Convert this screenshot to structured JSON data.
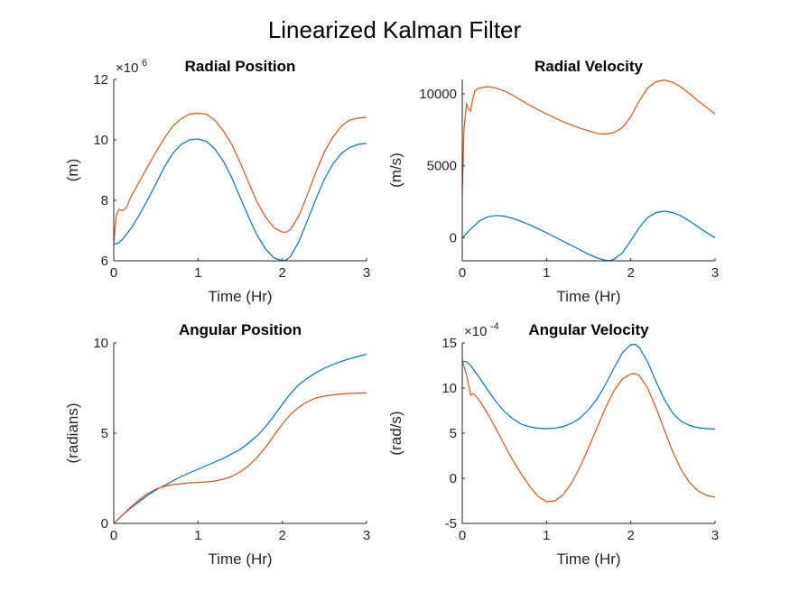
{
  "figure_title": "Linearized Kalman Filter",
  "colors": {
    "series1": "#0072BD",
    "series2": "#D95319",
    "axis": "#262626"
  },
  "chart_data": [
    {
      "type": "line",
      "title": "Radial Position",
      "xlabel": "Time (Hr)",
      "ylabel": "(m)",
      "exponent_label": "×10",
      "exponent_power": "6",
      "xlim": [
        0,
        3
      ],
      "ylim": [
        6,
        12
      ],
      "xticks": [
        "0",
        "1",
        "2",
        "3"
      ],
      "yticks": [
        "6",
        "8",
        "10",
        "12"
      ],
      "xtick_values": [
        0,
        1,
        2,
        3
      ],
      "ytick_values": [
        6,
        8,
        10,
        12
      ],
      "series": [
        {
          "color": "#0072BD",
          "x": [
            0,
            0.05,
            0.1,
            0.2,
            0.3,
            0.4,
            0.5,
            0.6,
            0.7,
            0.8,
            0.9,
            1.0,
            1.1,
            1.2,
            1.3,
            1.4,
            1.5,
            1.6,
            1.7,
            1.8,
            1.9,
            2.0,
            2.05,
            2.1,
            2.2,
            2.3,
            2.4,
            2.5,
            2.6,
            2.7,
            2.8,
            2.9,
            3.0
          ],
          "y": [
            6.55,
            6.58,
            6.7,
            7.05,
            7.5,
            8.0,
            8.55,
            9.1,
            9.55,
            9.85,
            10.0,
            10.03,
            9.95,
            9.7,
            9.3,
            8.75,
            8.1,
            7.45,
            6.85,
            6.4,
            6.1,
            6.0,
            6.03,
            6.15,
            6.65,
            7.35,
            8.05,
            8.7,
            9.2,
            9.55,
            9.75,
            9.85,
            9.88
          ]
        },
        {
          "color": "#D95319",
          "x": [
            0,
            0.03,
            0.06,
            0.1,
            0.15,
            0.2,
            0.3,
            0.4,
            0.5,
            0.6,
            0.7,
            0.8,
            0.9,
            1.0,
            1.1,
            1.2,
            1.3,
            1.4,
            1.5,
            1.6,
            1.7,
            1.8,
            1.9,
            2.0,
            2.05,
            2.1,
            2.2,
            2.3,
            2.4,
            2.5,
            2.6,
            2.7,
            2.8,
            2.9,
            3.0
          ],
          "y": [
            6.6,
            7.5,
            7.7,
            7.65,
            7.75,
            8.1,
            8.6,
            9.1,
            9.6,
            10.05,
            10.45,
            10.7,
            10.85,
            10.88,
            10.85,
            10.65,
            10.3,
            9.85,
            9.25,
            8.6,
            7.95,
            7.45,
            7.1,
            6.95,
            6.95,
            7.05,
            7.5,
            8.2,
            8.95,
            9.6,
            10.1,
            10.45,
            10.65,
            10.72,
            10.75
          ]
        }
      ]
    },
    {
      "type": "line",
      "title": "Radial Velocity",
      "xlabel": "Time (Hr)",
      "ylabel": "(m/s)",
      "xlim": [
        0,
        3
      ],
      "ylim": [
        -1600,
        11000
      ],
      "xticks": [
        "0",
        "1",
        "2",
        "3"
      ],
      "yticks": [
        "0",
        "5000",
        "10000"
      ],
      "xtick_values": [
        0,
        1,
        2,
        3
      ],
      "ytick_values": [
        0,
        5000,
        10000
      ],
      "series": [
        {
          "color": "#0072BD",
          "x": [
            0,
            0.1,
            0.2,
            0.3,
            0.4,
            0.5,
            0.6,
            0.8,
            1.0,
            1.2,
            1.4,
            1.5,
            1.6,
            1.7,
            1.75,
            1.8,
            1.9,
            2.0,
            2.1,
            2.2,
            2.3,
            2.4,
            2.5,
            2.6,
            2.7,
            2.8,
            2.9,
            3.0
          ],
          "y": [
            0,
            600,
            1150,
            1450,
            1550,
            1500,
            1350,
            900,
            350,
            -250,
            -850,
            -1150,
            -1400,
            -1560,
            -1580,
            -1500,
            -1050,
            -200,
            700,
            1400,
            1750,
            1850,
            1750,
            1500,
            1150,
            750,
            350,
            0
          ]
        },
        {
          "color": "#D95319",
          "x": [
            0,
            0.02,
            0.05,
            0.08,
            0.1,
            0.12,
            0.15,
            0.2,
            0.3,
            0.4,
            0.5,
            0.6,
            0.7,
            0.8,
            0.9,
            1.0,
            1.2,
            1.4,
            1.6,
            1.7,
            1.8,
            1.9,
            2.0,
            2.1,
            2.2,
            2.3,
            2.4,
            2.5,
            2.6,
            2.7,
            2.8,
            2.9,
            3.0
          ],
          "y": [
            2900,
            7500,
            9300,
            8900,
            8800,
            9500,
            10200,
            10400,
            10500,
            10400,
            10200,
            9900,
            9550,
            9200,
            8900,
            8600,
            8050,
            7600,
            7250,
            7200,
            7300,
            7650,
            8400,
            9500,
            10400,
            10850,
            10950,
            10800,
            10450,
            10000,
            9500,
            9050,
            8600
          ]
        }
      ]
    },
    {
      "type": "line",
      "title": "Angular Position",
      "xlabel": "Time (Hr)",
      "ylabel": "(radians)",
      "xlim": [
        0,
        3
      ],
      "ylim": [
        0,
        10
      ],
      "xticks": [
        "0",
        "1",
        "2",
        "3"
      ],
      "yticks": [
        "0",
        "5",
        "10"
      ],
      "xtick_values": [
        0,
        1,
        2,
        3
      ],
      "ytick_values": [
        0,
        5,
        10
      ],
      "series": [
        {
          "color": "#0072BD",
          "x": [
            0,
            0.1,
            0.2,
            0.3,
            0.4,
            0.5,
            0.6,
            0.7,
            0.8,
            0.9,
            1.0,
            1.1,
            1.2,
            1.3,
            1.4,
            1.5,
            1.6,
            1.7,
            1.8,
            1.9,
            2.0,
            2.1,
            2.2,
            2.3,
            2.4,
            2.5,
            2.6,
            2.7,
            2.8,
            2.9,
            3.0
          ],
          "y": [
            0,
            0.45,
            0.85,
            1.2,
            1.55,
            1.85,
            2.1,
            2.35,
            2.6,
            2.8,
            3.0,
            3.2,
            3.4,
            3.6,
            3.85,
            4.1,
            4.45,
            4.85,
            5.35,
            5.95,
            6.6,
            7.2,
            7.7,
            8.05,
            8.35,
            8.6,
            8.8,
            8.98,
            9.12,
            9.25,
            9.38
          ]
        },
        {
          "color": "#D95319",
          "x": [
            0,
            0.1,
            0.2,
            0.3,
            0.4,
            0.5,
            0.6,
            0.7,
            0.8,
            0.9,
            1.0,
            1.1,
            1.2,
            1.3,
            1.4,
            1.5,
            1.6,
            1.7,
            1.8,
            1.9,
            2.0,
            2.1,
            2.2,
            2.3,
            2.4,
            2.5,
            2.6,
            2.7,
            2.8,
            2.9,
            3.0
          ],
          "y": [
            0,
            0.45,
            0.9,
            1.3,
            1.65,
            1.9,
            2.05,
            2.15,
            2.2,
            2.25,
            2.27,
            2.3,
            2.35,
            2.45,
            2.6,
            2.85,
            3.2,
            3.65,
            4.2,
            4.85,
            5.5,
            6.05,
            6.45,
            6.75,
            6.95,
            7.05,
            7.12,
            7.17,
            7.2,
            7.22,
            7.23
          ]
        }
      ]
    },
    {
      "type": "line",
      "title": "Angular Velocity",
      "xlabel": "Time (Hr)",
      "ylabel": "(rad/s)",
      "exponent_label": "×10",
      "exponent_power": "-4",
      "xlim": [
        0,
        3
      ],
      "ylim": [
        -5,
        15
      ],
      "xticks": [
        "0",
        "1",
        "2",
        "3"
      ],
      "yticks": [
        "-5",
        "0",
        "5",
        "10",
        "15"
      ],
      "xtick_values": [
        0,
        1,
        2,
        3
      ],
      "ytick_values": [
        -5,
        0,
        5,
        10,
        15
      ],
      "series": [
        {
          "color": "#0072BD",
          "x": [
            0,
            0.05,
            0.1,
            0.2,
            0.3,
            0.4,
            0.5,
            0.6,
            0.7,
            0.8,
            0.9,
            1.0,
            1.1,
            1.2,
            1.3,
            1.4,
            1.5,
            1.6,
            1.7,
            1.8,
            1.9,
            2.0,
            2.05,
            2.1,
            2.2,
            2.3,
            2.4,
            2.5,
            2.6,
            2.7,
            2.8,
            2.9,
            3.0
          ],
          "y": [
            13.0,
            12.9,
            12.5,
            11.2,
            9.8,
            8.5,
            7.4,
            6.6,
            6.0,
            5.7,
            5.55,
            5.5,
            5.55,
            5.75,
            6.1,
            6.7,
            7.6,
            8.8,
            10.4,
            12.2,
            13.9,
            14.8,
            14.85,
            14.5,
            12.9,
            10.7,
            8.7,
            7.2,
            6.3,
            5.85,
            5.6,
            5.5,
            5.45
          ]
        },
        {
          "color": "#D95319",
          "x": [
            0,
            0.05,
            0.1,
            0.13,
            0.2,
            0.3,
            0.4,
            0.5,
            0.6,
            0.7,
            0.8,
            0.9,
            1.0,
            1.1,
            1.2,
            1.3,
            1.4,
            1.5,
            1.6,
            1.7,
            1.8,
            1.9,
            2.0,
            2.05,
            2.1,
            2.2,
            2.3,
            2.4,
            2.5,
            2.6,
            2.7,
            2.8,
            2.9,
            3.0
          ],
          "y": [
            13.0,
            11.5,
            9.2,
            9.4,
            8.7,
            7.2,
            5.5,
            3.7,
            2.0,
            0.5,
            -0.9,
            -2.0,
            -2.6,
            -2.5,
            -1.8,
            -0.5,
            1.3,
            3.4,
            5.6,
            7.8,
            9.7,
            11.0,
            11.55,
            11.6,
            11.4,
            10.0,
            7.8,
            5.3,
            2.9,
            0.9,
            -0.5,
            -1.4,
            -1.9,
            -2.1
          ]
        }
      ]
    }
  ]
}
